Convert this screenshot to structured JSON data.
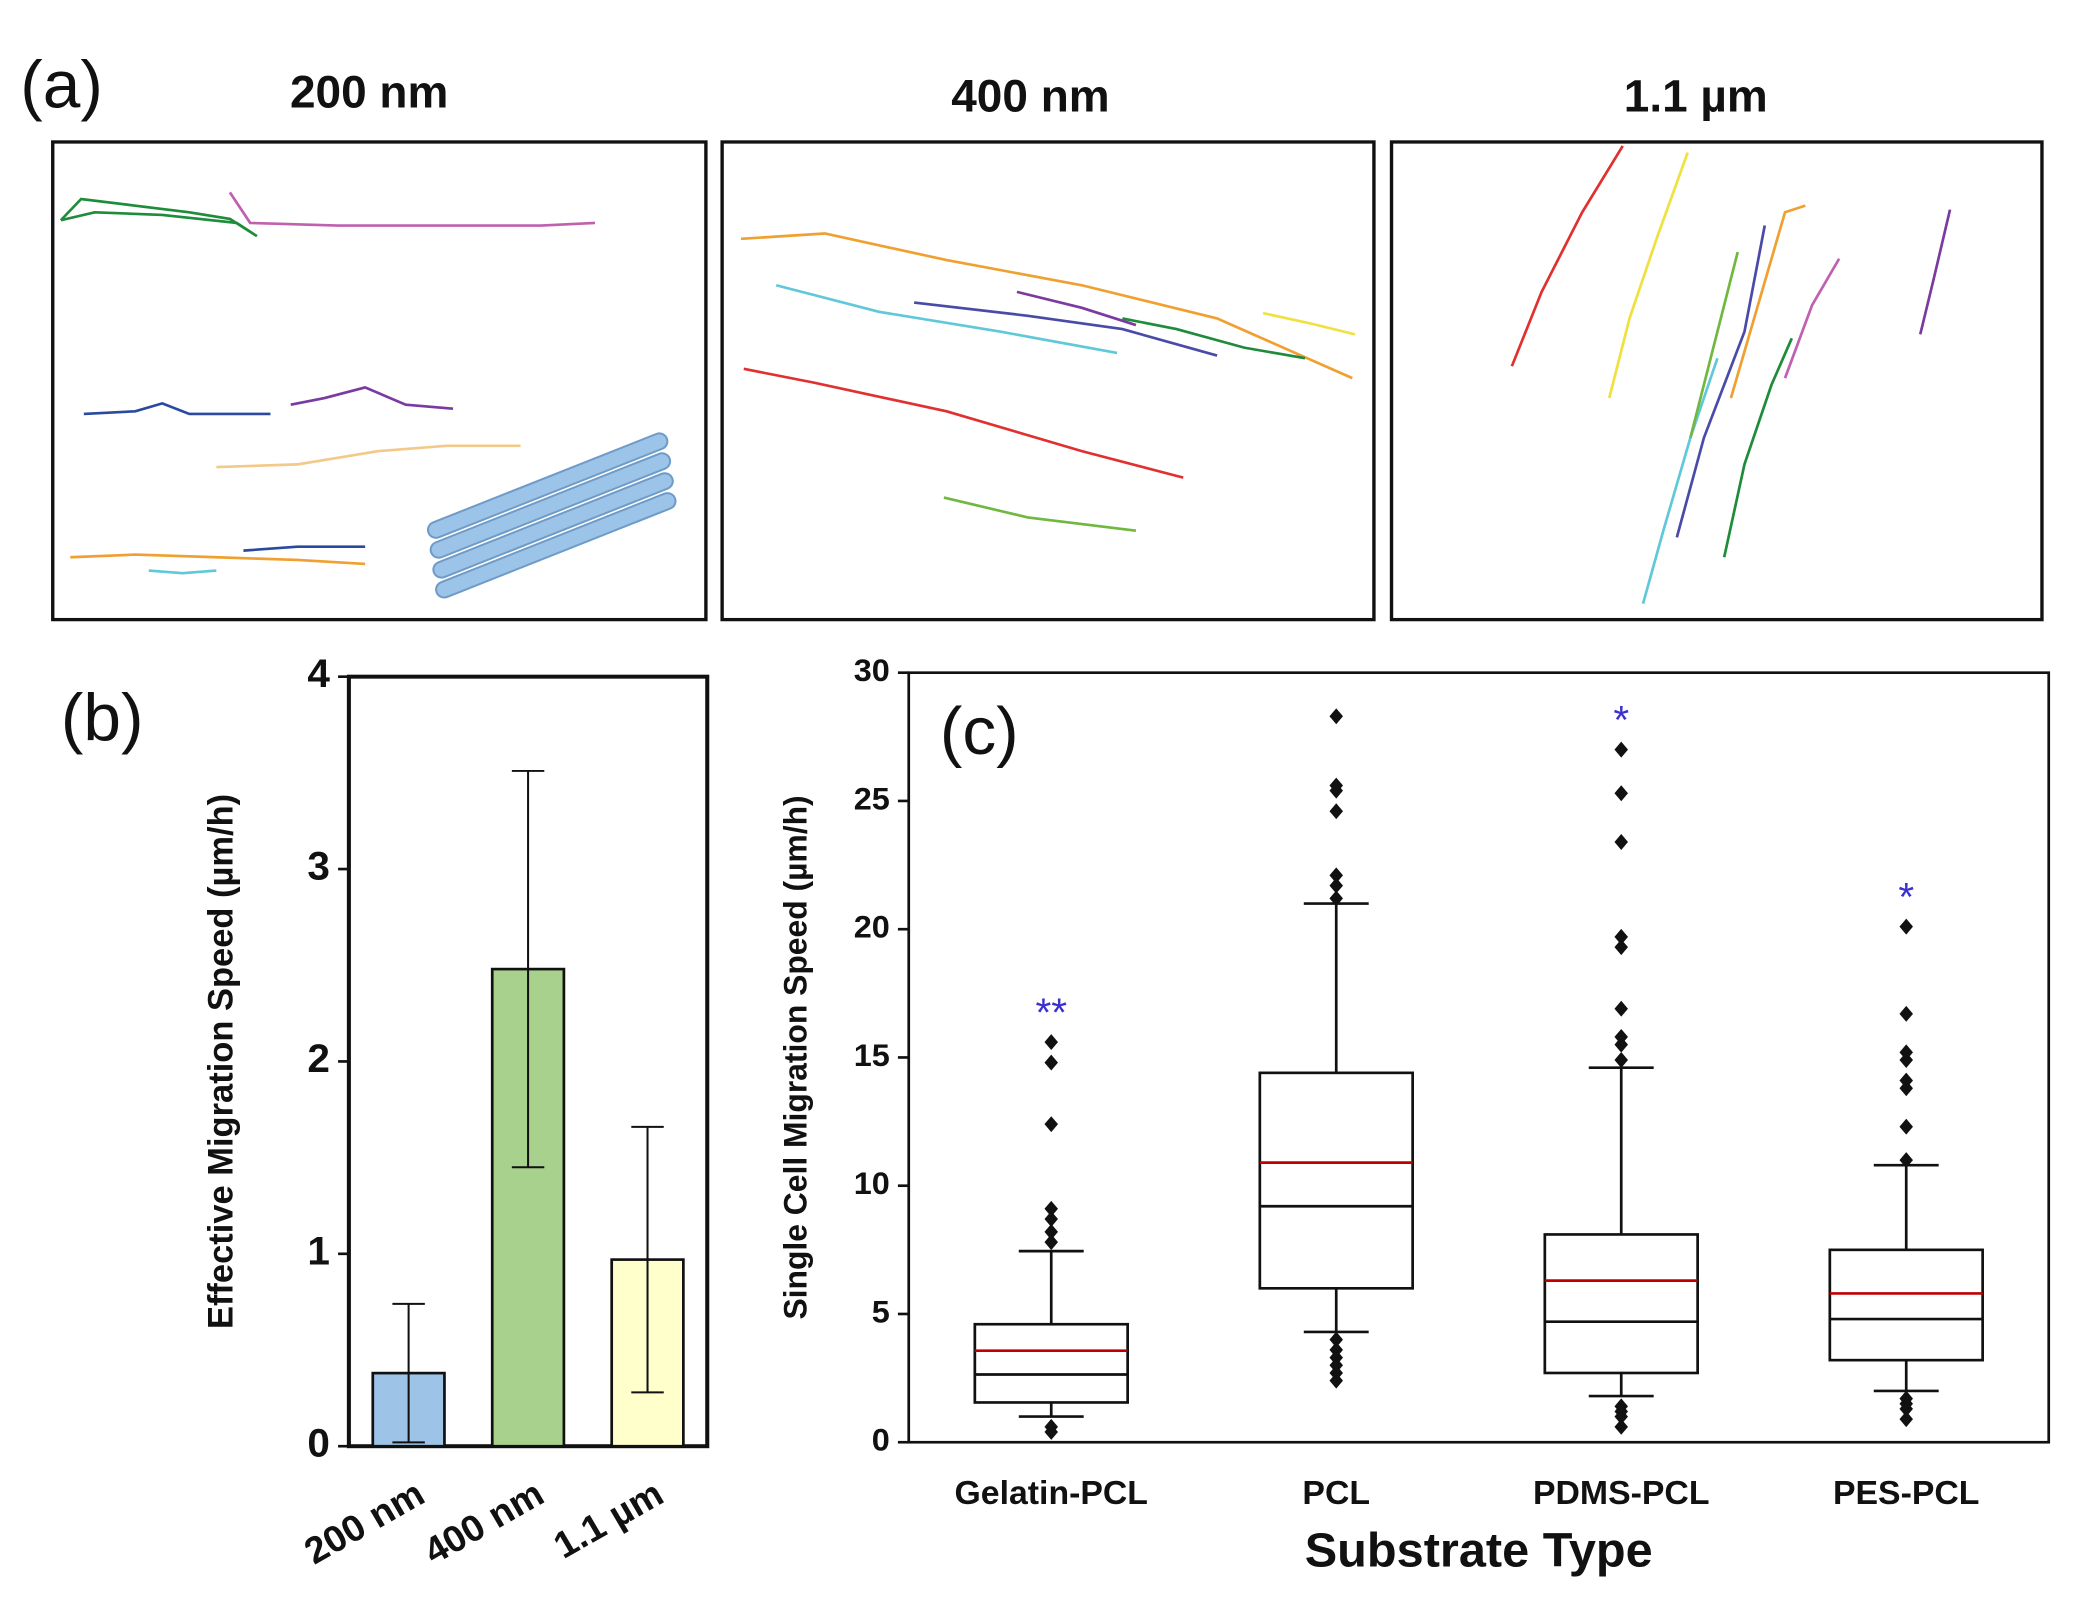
{
  "figure": {
    "panel_a_label": "(a)",
    "panel_a_titles": [
      "200 nm",
      "400 nm",
      "1.1 µm"
    ]
  },
  "chart_data": [
    {
      "type": "bar",
      "label": "(b)",
      "ylabel": "Effective Migration Speed (µm/h)",
      "categories": [
        "200 nm",
        "400 nm",
        "1.1 µm"
      ],
      "values": [
        0.38,
        2.48,
        0.97
      ],
      "errors": [
        0.36,
        1.03,
        0.69
      ],
      "colors": [
        "#9dc3e6",
        "#a9d18e",
        "#ffffcc"
      ],
      "ylim": [
        0,
        4
      ],
      "yticks": [
        0,
        1,
        2,
        3,
        4
      ]
    },
    {
      "type": "box",
      "label": "(c)",
      "ylabel": "Single Cell Migration Speed (µm/h)",
      "xlabel": "Substrate Type",
      "categories": [
        "Gelatin-PCL",
        "PCL",
        "PDMS-PCL",
        "PES-PCL"
      ],
      "boxes": [
        {
          "whislo": 1.0,
          "q1": 1.55,
          "med": 2.64,
          "mean": 3.57,
          "q3": 4.6,
          "whishi": 7.45,
          "fliers": [
            7.8,
            8.2,
            8.7,
            9.1,
            12.4,
            14.8,
            15.6,
            0.6,
            0.4
          ]
        },
        {
          "whislo": 4.3,
          "q1": 6.0,
          "med": 9.2,
          "mean": 10.9,
          "q3": 14.4,
          "whishi": 21.0,
          "fliers": [
            21.2,
            21.7,
            22.1,
            24.6,
            25.4,
            25.6,
            28.3,
            4.0,
            3.6,
            3.3,
            3.0,
            2.7,
            2.4
          ]
        },
        {
          "whislo": 1.8,
          "q1": 2.7,
          "med": 4.7,
          "mean": 6.3,
          "q3": 8.1,
          "whishi": 14.6,
          "fliers": [
            14.9,
            15.5,
            15.8,
            16.9,
            19.3,
            19.7,
            23.4,
            25.3,
            27.0,
            1.4,
            1.2,
            1.0,
            0.6
          ]
        },
        {
          "whislo": 2.0,
          "q1": 3.2,
          "med": 4.8,
          "mean": 5.8,
          "q3": 7.5,
          "whishi": 10.8,
          "fliers": [
            11.0,
            12.3,
            13.8,
            14.1,
            14.9,
            15.2,
            16.7,
            20.1,
            1.7,
            1.5,
            1.3,
            0.9
          ]
        }
      ],
      "significance": [
        "**",
        null,
        "*",
        "*"
      ],
      "mean_color": "#c00000",
      "significance_color": "#3a2fd0",
      "ylim": [
        0,
        30
      ],
      "yticks": [
        0,
        5,
        10,
        15,
        20,
        25,
        30
      ]
    }
  ]
}
